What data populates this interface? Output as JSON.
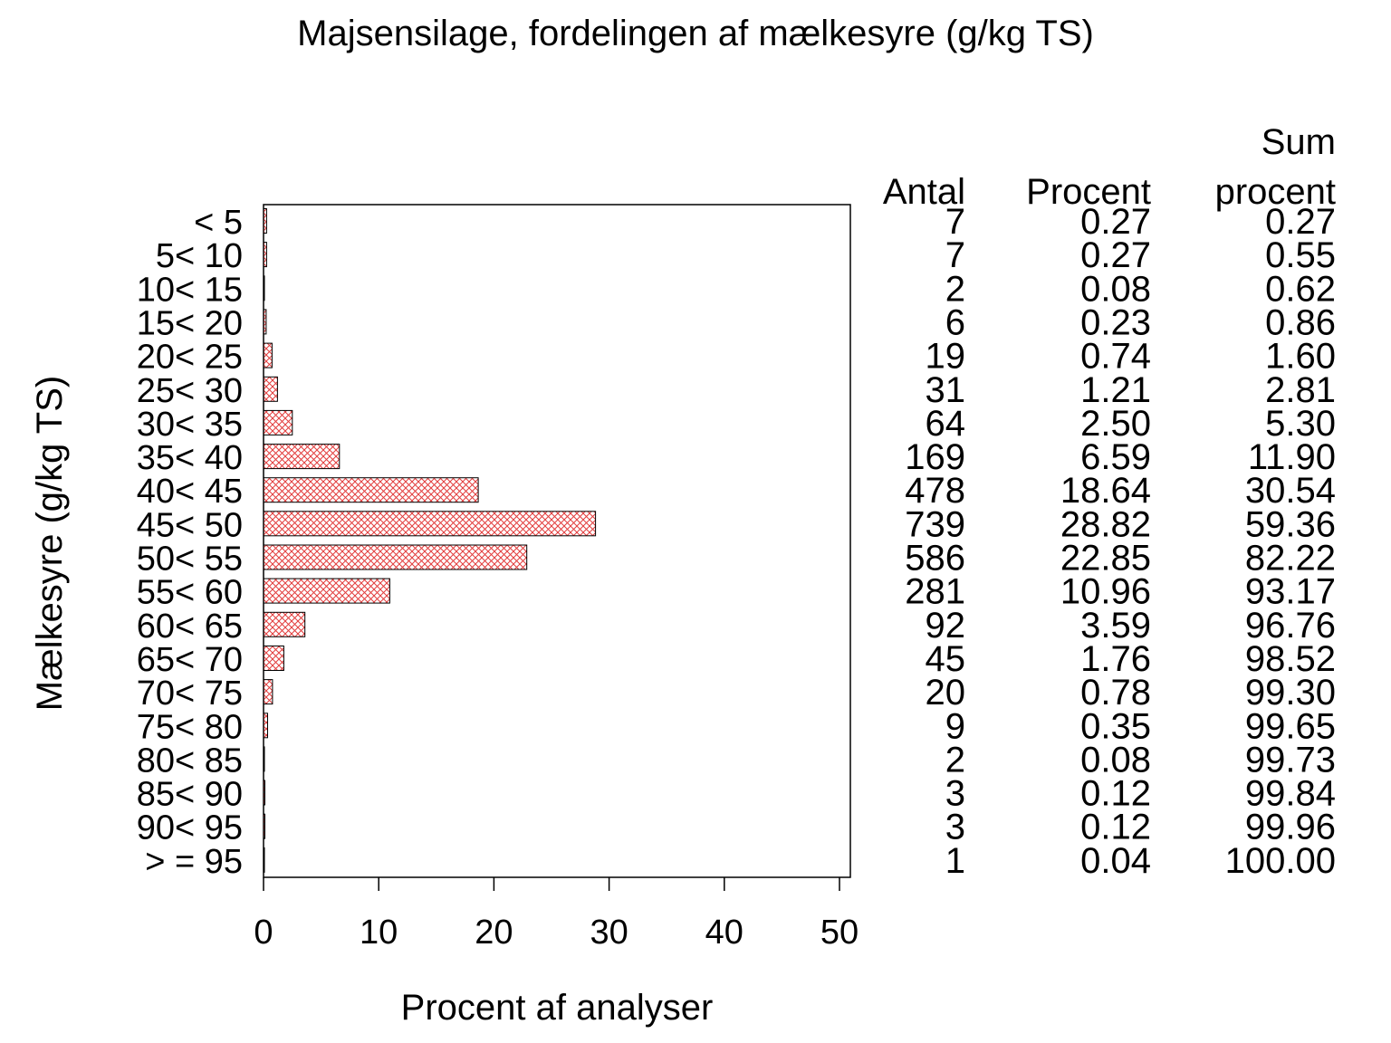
{
  "chart_data": {
    "type": "bar",
    "orientation": "horizontal",
    "title": "Majsensilage,  fordelingen  af  mælkesyre  (g/kg  TS)",
    "xlabel": "Procent  af  analyser",
    "ylabel": "Mælkesyre  (g/kg  TS)",
    "xlim": [
      0,
      50
    ],
    "xticks": [
      "0",
      "10",
      "20",
      "30",
      "40",
      "50"
    ],
    "bar_color": "#e23c3c",
    "bar_pattern": "crosshatch",
    "grid": false,
    "categories": [
      "< 5",
      "5< 10",
      "10< 15",
      "15< 20",
      "20< 25",
      "25< 30",
      "30< 35",
      "35< 40",
      "40< 45",
      "45< 50",
      "50< 55",
      "55< 60",
      "60< 65",
      "65< 70",
      "70< 75",
      "75< 80",
      "80< 85",
      "85< 90",
      "90< 95",
      "> = 95"
    ],
    "values": [
      0.27,
      0.27,
      0.08,
      0.23,
      0.74,
      1.21,
      2.5,
      6.59,
      18.64,
      28.82,
      22.85,
      10.96,
      3.59,
      1.76,
      0.78,
      0.35,
      0.08,
      0.12,
      0.12,
      0.04
    ],
    "table": {
      "headers": {
        "antal": "Antal",
        "procent": "Procent",
        "sum_top": "Sum",
        "sum_bottom": "procent"
      },
      "antal": [
        "7",
        "7",
        "2",
        "6",
        "19",
        "31",
        "64",
        "169",
        "478",
        "739",
        "586",
        "281",
        "92",
        "45",
        "20",
        "9",
        "2",
        "3",
        "3",
        "1"
      ],
      "procent": [
        "0.27",
        "0.27",
        "0.08",
        "0.23",
        "0.74",
        "1.21",
        "2.50",
        "6.59",
        "18.64",
        "28.82",
        "22.85",
        "10.96",
        "3.59",
        "1.76",
        "0.78",
        "0.35",
        "0.08",
        "0.12",
        "0.12",
        "0.04"
      ],
      "sum_procent": [
        "0.27",
        "0.55",
        "0.62",
        "0.86",
        "1.60",
        "2.81",
        "5.30",
        "11.90",
        "30.54",
        "59.36",
        "82.22",
        "93.17",
        "96.76",
        "98.52",
        "99.30",
        "99.65",
        "99.73",
        "99.84",
        "99.96",
        "100.00"
      ]
    }
  }
}
